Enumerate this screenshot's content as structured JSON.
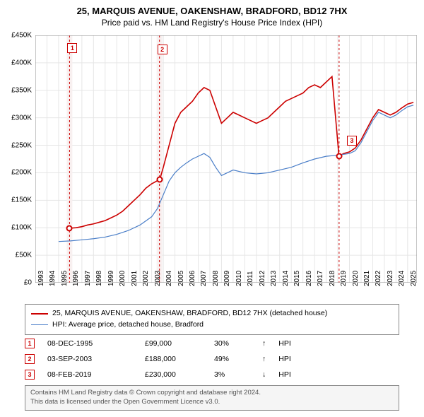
{
  "title": "25, MARQUIS AVENUE, OAKENSHAW, BRADFORD, BD12 7HX",
  "subtitle": "Price paid vs. HM Land Registry's House Price Index (HPI)",
  "chart": {
    "type": "line",
    "xlim": [
      1993,
      2025.8
    ],
    "ylim": [
      0,
      450000
    ],
    "ytick_step": 50000,
    "yticks": [
      "£0",
      "£50K",
      "£100K",
      "£150K",
      "£200K",
      "£250K",
      "£300K",
      "£350K",
      "£400K",
      "£450K"
    ],
    "xticks": [
      1993,
      1994,
      1995,
      1996,
      1997,
      1998,
      1999,
      2000,
      2001,
      2002,
      2003,
      2004,
      2005,
      2006,
      2007,
      2008,
      2009,
      2010,
      2011,
      2012,
      2013,
      2014,
      2015,
      2016,
      2017,
      2018,
      2019,
      2020,
      2021,
      2022,
      2023,
      2024,
      2025
    ],
    "grid_color": "#e6e6e6",
    "accent_band_color": "#f8f0f0",
    "background": "#ffffff",
    "series": [
      {
        "name": "prop",
        "label": "25, MARQUIS AVENUE, OAKENSHAW, BRADFORD, BD12 7HX (detached house)",
        "color": "#cc0000",
        "width": 1.6,
        "data": [
          [
            1995.9,
            99000
          ],
          [
            1996.5,
            100000
          ],
          [
            1997,
            102000
          ],
          [
            1997.5,
            105000
          ],
          [
            1998,
            107000
          ],
          [
            1998.5,
            110000
          ],
          [
            1999,
            113000
          ],
          [
            1999.5,
            118000
          ],
          [
            2000,
            123000
          ],
          [
            2000.5,
            130000
          ],
          [
            2001,
            140000
          ],
          [
            2001.5,
            150000
          ],
          [
            2002,
            160000
          ],
          [
            2002.5,
            172000
          ],
          [
            2003,
            180000
          ],
          [
            2003.7,
            188000
          ],
          [
            2004,
            210000
          ],
          [
            2004.5,
            250000
          ],
          [
            2005,
            290000
          ],
          [
            2005.5,
            310000
          ],
          [
            2006,
            320000
          ],
          [
            2006.5,
            330000
          ],
          [
            2007,
            345000
          ],
          [
            2007.5,
            355000
          ],
          [
            2008,
            350000
          ],
          [
            2008.5,
            320000
          ],
          [
            2009,
            290000
          ],
          [
            2009.5,
            300000
          ],
          [
            2010,
            310000
          ],
          [
            2010.5,
            305000
          ],
          [
            2011,
            300000
          ],
          [
            2011.5,
            295000
          ],
          [
            2012,
            290000
          ],
          [
            2012.5,
            295000
          ],
          [
            2013,
            300000
          ],
          [
            2013.5,
            310000
          ],
          [
            2014,
            320000
          ],
          [
            2014.5,
            330000
          ],
          [
            2015,
            335000
          ],
          [
            2015.5,
            340000
          ],
          [
            2016,
            345000
          ],
          [
            2016.5,
            355000
          ],
          [
            2017,
            360000
          ],
          [
            2017.5,
            355000
          ],
          [
            2018,
            365000
          ],
          [
            2018.5,
            375000
          ],
          [
            2019.1,
            230000
          ],
          [
            2019.5,
            235000
          ],
          [
            2020,
            238000
          ],
          [
            2020.5,
            245000
          ],
          [
            2021,
            260000
          ],
          [
            2021.5,
            280000
          ],
          [
            2022,
            300000
          ],
          [
            2022.5,
            315000
          ],
          [
            2023,
            310000
          ],
          [
            2023.5,
            305000
          ],
          [
            2024,
            310000
          ],
          [
            2024.5,
            318000
          ],
          [
            2025,
            325000
          ],
          [
            2025.5,
            328000
          ]
        ]
      },
      {
        "name": "hpi",
        "label": "HPI: Average price, detached house, Bradford",
        "color": "#4a7ec8",
        "width": 1.2,
        "data": [
          [
            1995,
            75000
          ],
          [
            1996,
            76000
          ],
          [
            1997,
            78000
          ],
          [
            1998,
            80000
          ],
          [
            1999,
            83000
          ],
          [
            2000,
            88000
          ],
          [
            2001,
            95000
          ],
          [
            2002,
            105000
          ],
          [
            2003,
            120000
          ],
          [
            2003.5,
            135000
          ],
          [
            2004,
            160000
          ],
          [
            2004.5,
            185000
          ],
          [
            2005,
            200000
          ],
          [
            2005.5,
            210000
          ],
          [
            2006,
            218000
          ],
          [
            2006.5,
            225000
          ],
          [
            2007,
            230000
          ],
          [
            2007.5,
            235000
          ],
          [
            2008,
            228000
          ],
          [
            2008.5,
            210000
          ],
          [
            2009,
            195000
          ],
          [
            2009.5,
            200000
          ],
          [
            2010,
            205000
          ],
          [
            2011,
            200000
          ],
          [
            2012,
            198000
          ],
          [
            2013,
            200000
          ],
          [
            2014,
            205000
          ],
          [
            2015,
            210000
          ],
          [
            2016,
            218000
          ],
          [
            2017,
            225000
          ],
          [
            2018,
            230000
          ],
          [
            2019,
            232000
          ],
          [
            2020,
            235000
          ],
          [
            2020.5,
            240000
          ],
          [
            2021,
            255000
          ],
          [
            2021.5,
            275000
          ],
          [
            2022,
            295000
          ],
          [
            2022.5,
            310000
          ],
          [
            2023,
            305000
          ],
          [
            2023.5,
            300000
          ],
          [
            2024,
            305000
          ],
          [
            2024.5,
            313000
          ],
          [
            2025,
            320000
          ],
          [
            2025.5,
            323000
          ]
        ]
      }
    ],
    "sales": [
      {
        "n": "1",
        "x": 1995.94,
        "price": 99000,
        "band": true
      },
      {
        "n": "2",
        "x": 2003.67,
        "price": 188000,
        "band": true
      },
      {
        "n": "3",
        "x": 2019.11,
        "price": 230000,
        "band": false
      }
    ],
    "marker_color": "#cc0000",
    "marker_offset_y": -30
  },
  "legend": {
    "prop_color": "#cc0000",
    "hpi_color": "#4a7ec8",
    "prop_label": "25, MARQUIS AVENUE, OAKENSHAW, BRADFORD, BD12 7HX (detached house)",
    "hpi_label": "HPI: Average price, detached house, Bradford"
  },
  "transactions": [
    {
      "n": "1",
      "date": "08-DEC-1995",
      "price": "£99,000",
      "pct": "30%",
      "arrow": "↑",
      "rel": "HPI"
    },
    {
      "n": "2",
      "date": "03-SEP-2003",
      "price": "£188,000",
      "pct": "49%",
      "arrow": "↑",
      "rel": "HPI"
    },
    {
      "n": "3",
      "date": "08-FEB-2019",
      "price": "£230,000",
      "pct": "3%",
      "arrow": "↓",
      "rel": "HPI"
    }
  ],
  "footer": {
    "line1": "Contains HM Land Registry data © Crown copyright and database right 2024.",
    "line2": "This data is licensed under the Open Government Licence v3.0."
  }
}
